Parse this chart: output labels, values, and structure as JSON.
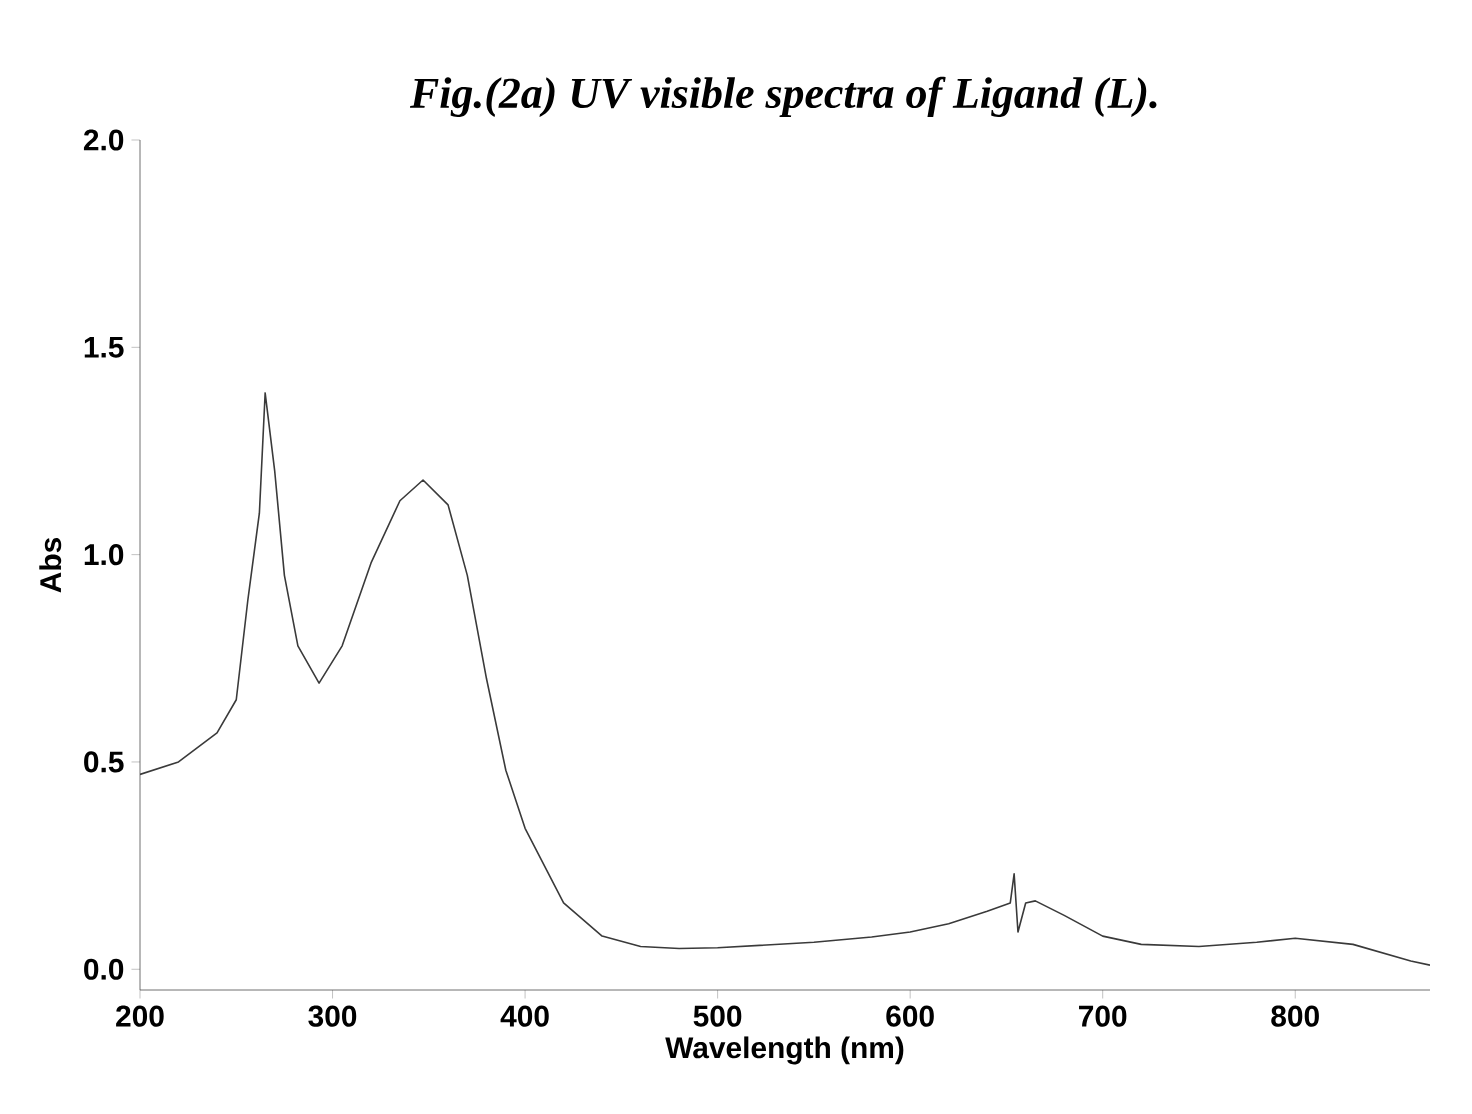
{
  "chart_data": {
    "type": "line",
    "title": "Fig.(2a) UV visible spectra of Ligand (L).",
    "xlabel": "Wavelength (nm)",
    "ylabel": "Abs",
    "xlim": [
      200,
      870
    ],
    "ylim": [
      -0.05,
      2.0
    ],
    "xticks": [
      200,
      300,
      400,
      500,
      600,
      700,
      800
    ],
    "yticks": [
      {
        "value": 0,
        "label": "0.0"
      },
      {
        "value": 0.5,
        "label": "0.5"
      },
      {
        "value": 1.0,
        "label": "1.0"
      },
      {
        "value": 1.5,
        "label": "1.5"
      },
      {
        "value": 2.0,
        "label": "2.0"
      }
    ],
    "marker": "none",
    "line_style": "solid",
    "series": [
      {
        "color": "#3a3a3a",
        "x": [
          200,
          220,
          240,
          250,
          256,
          262,
          265,
          270,
          275,
          282,
          293,
          305,
          320,
          335,
          347,
          360,
          370,
          380,
          390,
          400,
          420,
          440,
          460,
          480,
          500,
          550,
          580,
          600,
          620,
          640,
          652,
          654,
          656,
          660,
          665,
          680,
          700,
          720,
          750,
          780,
          800,
          830,
          860,
          870
        ],
        "values": [
          0.47,
          0.5,
          0.57,
          0.65,
          0.89,
          1.1,
          1.39,
          1.2,
          0.95,
          0.78,
          0.69,
          0.78,
          0.98,
          1.13,
          1.18,
          1.12,
          0.95,
          0.7,
          0.48,
          0.34,
          0.16,
          0.08,
          0.055,
          0.05,
          0.052,
          0.065,
          0.078,
          0.09,
          0.11,
          0.14,
          0.16,
          0.23,
          0.09,
          0.16,
          0.165,
          0.13,
          0.08,
          0.06,
          0.055,
          0.065,
          0.075,
          0.06,
          0.02,
          0.01
        ]
      }
    ]
  }
}
